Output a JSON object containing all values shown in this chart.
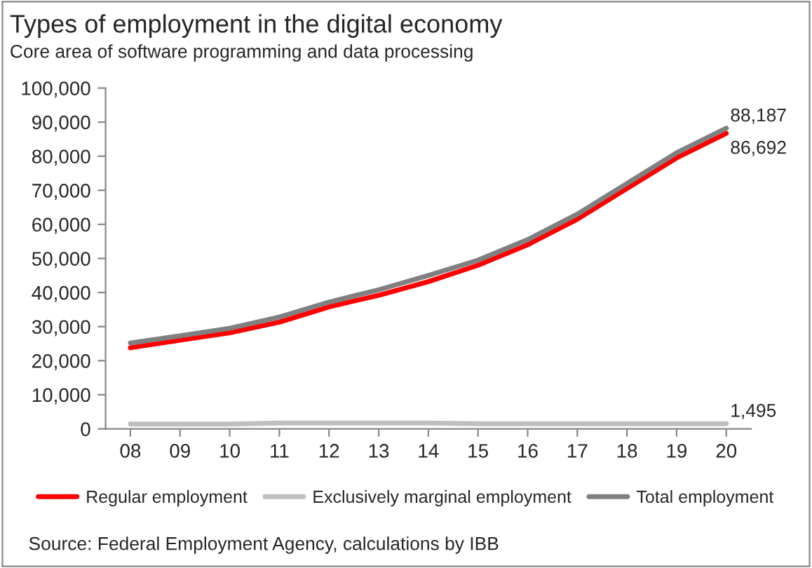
{
  "chart_data": {
    "type": "line",
    "title": "Types of employment in the digital economy",
    "subtitle": "Core area of software programming and data processing",
    "categories": [
      "08",
      "09",
      "10",
      "11",
      "12",
      "13",
      "14",
      "15",
      "16",
      "17",
      "18",
      "19",
      "20"
    ],
    "series": [
      {
        "name": "Regular employment",
        "color": "#ff0000",
        "values": [
          23800,
          26000,
          28200,
          31300,
          35800,
          39200,
          43200,
          48000,
          54000,
          61500,
          70500,
          79500,
          86692
        ],
        "value_labels": [
          null,
          null,
          null,
          null,
          null,
          null,
          null,
          null,
          null,
          null,
          null,
          null,
          "86,692"
        ]
      },
      {
        "name": "Exclusively marginal employment",
        "color": "#bfbfbf",
        "values": [
          1400,
          1400,
          1400,
          1700,
          1700,
          1700,
          1700,
          1500,
          1500,
          1500,
          1500,
          1500,
          1495
        ],
        "value_labels": [
          null,
          null,
          null,
          null,
          null,
          null,
          null,
          null,
          null,
          null,
          null,
          null,
          "1,495"
        ]
      },
      {
        "name": "Total employment",
        "color": "#808080",
        "values": [
          25200,
          27300,
          29500,
          32800,
          37200,
          40800,
          45000,
          49500,
          55500,
          63000,
          72000,
          81000,
          88187
        ],
        "value_labels": [
          null,
          null,
          null,
          null,
          null,
          null,
          null,
          null,
          null,
          null,
          null,
          null,
          "88,187"
        ]
      }
    ],
    "ylim": [
      0,
      100000
    ],
    "yticks": [
      0,
      {
        "value": 10000,
        "label": "10,000"
      },
      {
        "value": 20000,
        "label": "20,000"
      },
      {
        "value": 30000,
        "label": "30,000"
      },
      {
        "value": 40000,
        "label": "40,000"
      },
      {
        "value": 50000,
        "label": "50,000"
      },
      {
        "value": 60000,
        "label": "60,000"
      },
      {
        "value": 70000,
        "label": "70,000"
      },
      {
        "value": 80000,
        "label": "80,000"
      },
      {
        "value": 90000,
        "label": "90,000"
      },
      {
        "value": 100000,
        "label": "100,000"
      }
    ],
    "grid": false,
    "legend": "bottom",
    "marker": "none",
    "line_style": "solid",
    "annotations": [
      "Source: Federal Employment Agency, calculations by IBB"
    ]
  }
}
